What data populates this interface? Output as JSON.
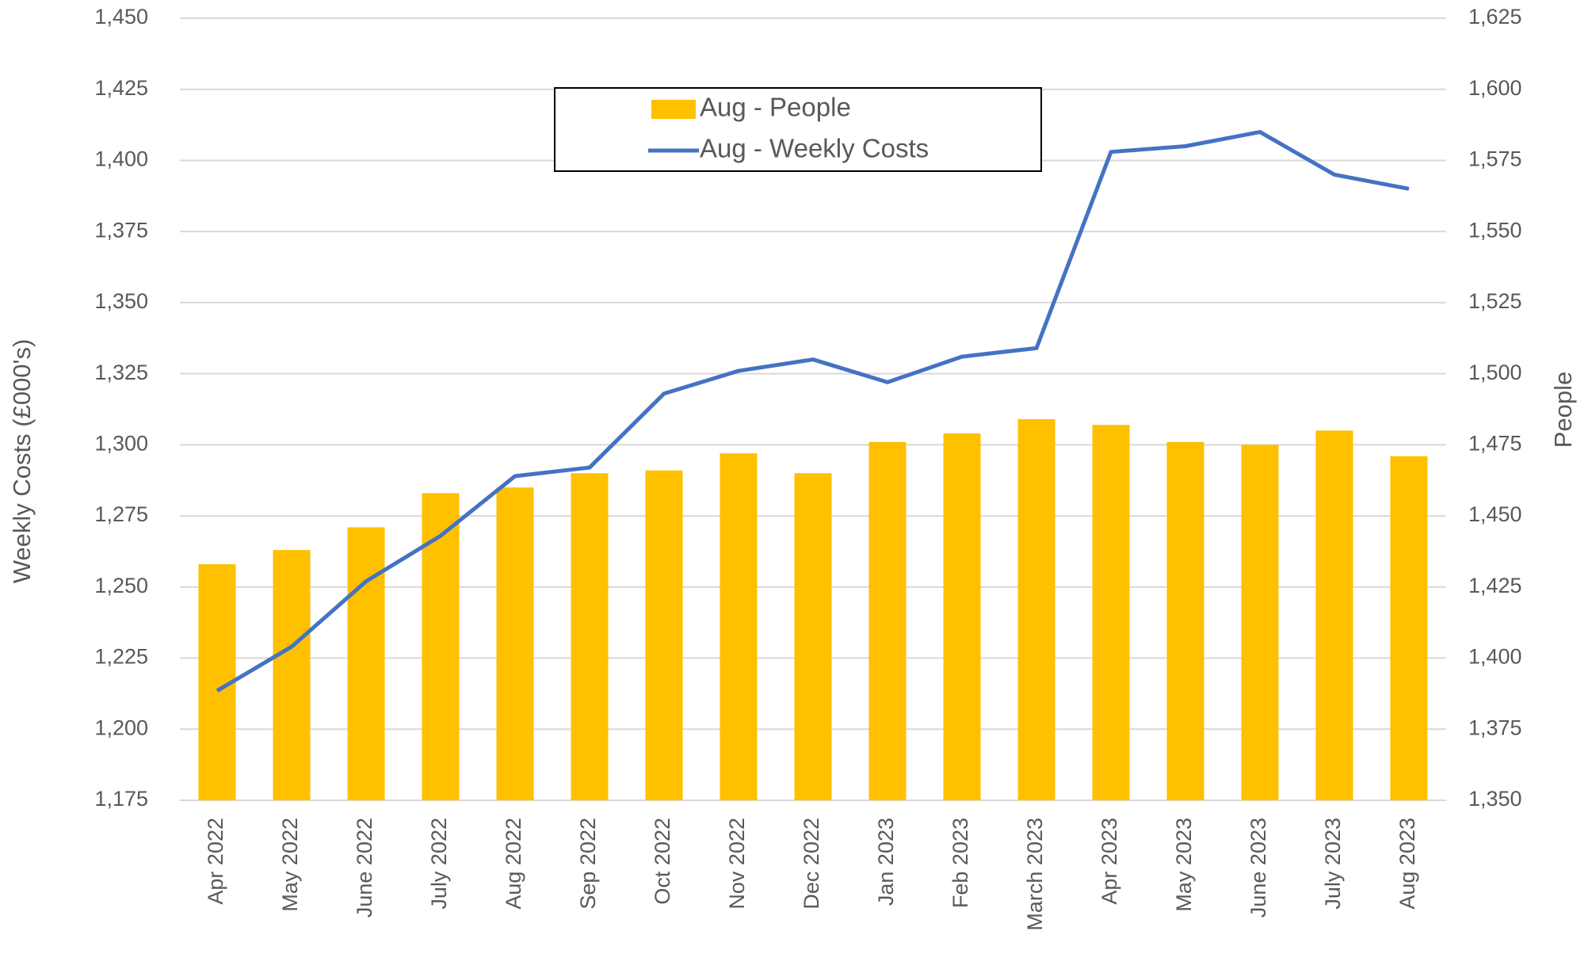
{
  "chart_data": {
    "type": "bar-line",
    "y_label": "Weekly Costs (£000's)",
    "y2_label": "People",
    "categories": [
      "Apr 2022",
      "May 2022",
      "June 2022",
      "July 2022",
      "Aug 2022",
      "Sep 2022",
      "Oct 2022",
      "Nov 2022",
      "Dec 2022",
      "Jan 2023",
      "Feb 2023",
      "March 2023",
      "Apr 2023",
      "May 2023",
      "June 2023",
      "July 2023",
      "Aug 2023"
    ],
    "series": [
      {
        "name": "Aug - People",
        "type": "bar",
        "axis": "y2",
        "color": "#FFC000",
        "values": [
          1433,
          1438,
          1446,
          1458,
          1460,
          1465,
          1466,
          1472,
          1465,
          1476,
          1479,
          1484,
          1482,
          1476,
          1475,
          1480,
          1471
        ]
      },
      {
        "name": "Aug - Weekly Costs",
        "type": "line",
        "axis": "y",
        "color": "#4472C4",
        "values": [
          1213.5,
          1229,
          1252,
          1268,
          1289,
          1292,
          1318,
          1326,
          1330,
          1322,
          1331,
          1334,
          1403,
          1405,
          1410,
          1395,
          1390
        ]
      }
    ],
    "ylim": [
      1175,
      1450
    ],
    "yticks": [
      {
        "value": 1175,
        "label": "1,175"
      },
      {
        "value": 1200,
        "label": "1,200"
      },
      {
        "value": 1225,
        "label": "1,225"
      },
      {
        "value": 1250,
        "label": "1,250"
      },
      {
        "value": 1275,
        "label": "1,275"
      },
      {
        "value": 1300,
        "label": "1,300"
      },
      {
        "value": 1325,
        "label": "1,325"
      },
      {
        "value": 1350,
        "label": "1,350"
      },
      {
        "value": 1375,
        "label": "1,375"
      },
      {
        "value": 1400,
        "label": "1,400"
      },
      {
        "value": 1425,
        "label": "1,425"
      },
      {
        "value": 1450,
        "label": "1,450"
      }
    ],
    "y2lim": [
      1350,
      1625
    ],
    "y2ticks": [
      {
        "value": 1350,
        "label": "1,350"
      },
      {
        "value": 1375,
        "label": "1,375"
      },
      {
        "value": 1400,
        "label": "1,400"
      },
      {
        "value": 1425,
        "label": "1,425"
      },
      {
        "value": 1450,
        "label": "1,450"
      },
      {
        "value": 1475,
        "label": "1,475"
      },
      {
        "value": 1500,
        "label": "1,500"
      },
      {
        "value": 1525,
        "label": "1,525"
      },
      {
        "value": 1550,
        "label": "1,550"
      },
      {
        "value": 1575,
        "label": "1,575"
      },
      {
        "value": 1600,
        "label": "1,600"
      },
      {
        "value": 1625,
        "label": "1,625"
      }
    ],
    "grid": true,
    "legend": "top-center"
  }
}
